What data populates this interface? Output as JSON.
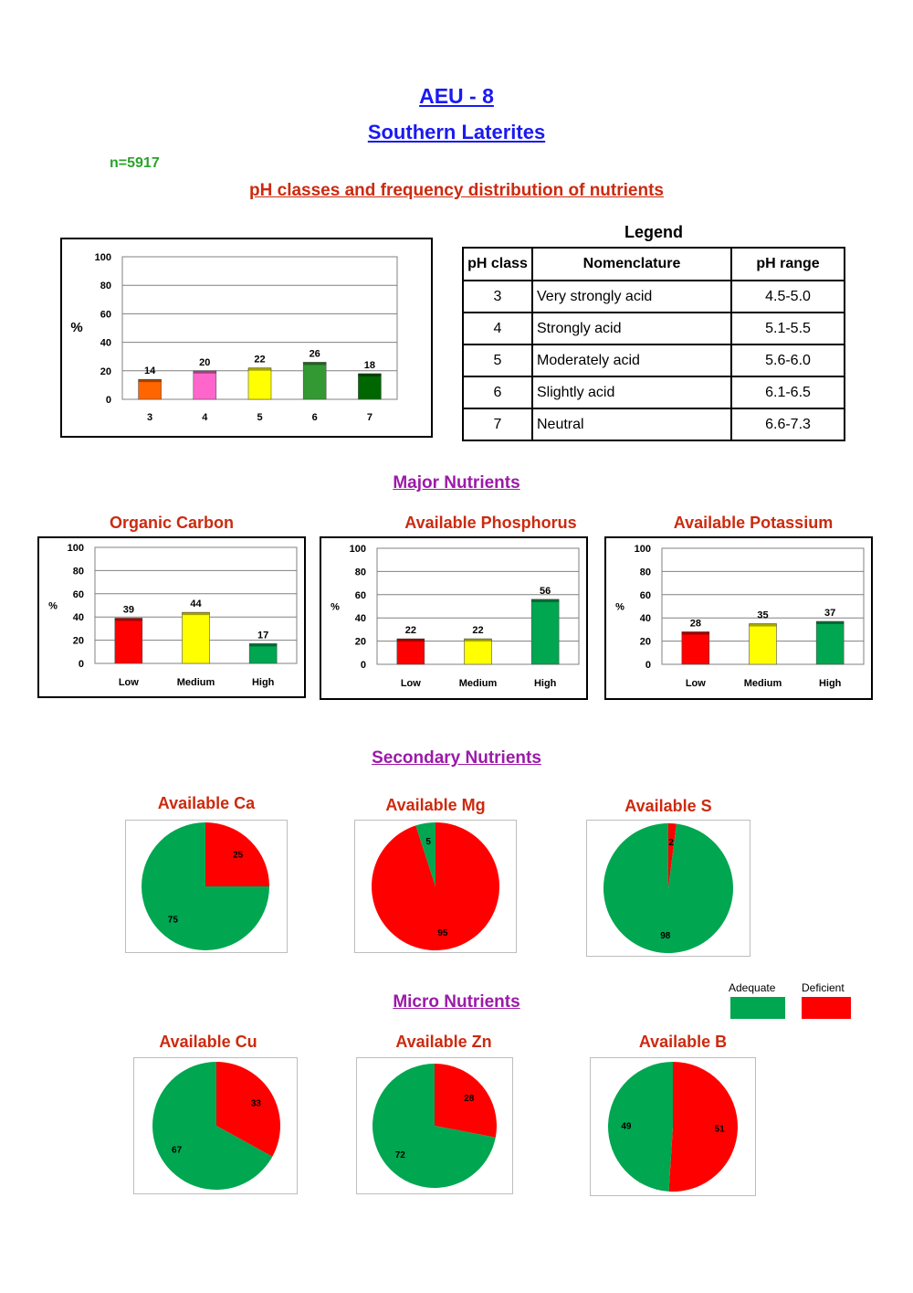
{
  "header": {
    "aeu": "AEU - 8",
    "region": "Southern Laterites",
    "n": "n=5917",
    "section_ph": "pH classes and frequency distribution of nutrients",
    "section_major": "Major Nutrients",
    "section_secondary": "Secondary Nutrients",
    "section_micro": "Micro Nutrients"
  },
  "colors": {
    "title_blue": "#1a1af0",
    "section_red": "#cc2a0f",
    "section_purple": "#9b1aa8",
    "n_green": "#2aa32a",
    "adequate": "#00a650",
    "deficient": "#ff0000",
    "low": "#ff0000",
    "medium": "#ffff00",
    "high": "#00a650"
  },
  "legend_table": {
    "title": "Legend",
    "headers": [
      "pH class",
      "Nomenclature",
      "pH range"
    ],
    "rows": [
      [
        "3",
        "Very strongly acid",
        "4.5-5.0"
      ],
      [
        "4",
        "Strongly acid",
        "5.1-5.5"
      ],
      [
        "5",
        "Moderately acid",
        "5.6-6.0"
      ],
      [
        "6",
        "Slightly acid",
        "6.1-6.5"
      ],
      [
        "7",
        "Neutral",
        "6.6-7.3"
      ]
    ]
  },
  "pie_legend": {
    "adequate": "Adequate",
    "deficient": "Deficient"
  },
  "chart_data": [
    {
      "id": "ph",
      "type": "bar",
      "title": "",
      "ylabel": "%",
      "ylim": [
        0,
        100
      ],
      "yticks": [
        0,
        20,
        40,
        60,
        80,
        100
      ],
      "grid": true,
      "categories": [
        "3",
        "4",
        "5",
        "6",
        "7"
      ],
      "values": [
        14,
        20,
        22,
        26,
        18
      ],
      "colors": [
        "#ff6600",
        "#ff66cc",
        "#ffff00",
        "#339933",
        "#006600"
      ]
    },
    {
      "id": "oc",
      "type": "bar",
      "title": "Organic Carbon",
      "ylabel": "%",
      "ylim": [
        0,
        100
      ],
      "yticks": [
        0,
        20,
        40,
        60,
        80,
        100
      ],
      "grid": true,
      "categories": [
        "Low",
        "Medium",
        "High"
      ],
      "values": [
        39,
        44,
        17
      ],
      "colors": [
        "#ff0000",
        "#ffff00",
        "#00a650"
      ]
    },
    {
      "id": "p",
      "type": "bar",
      "title": "Available Phosphorus",
      "ylabel": "%",
      "ylim": [
        0,
        100
      ],
      "yticks": [
        0,
        20,
        40,
        60,
        80,
        100
      ],
      "grid": true,
      "categories": [
        "Low",
        "Medium",
        "High"
      ],
      "values": [
        22,
        22,
        56
      ],
      "colors": [
        "#ff0000",
        "#ffff00",
        "#00a650"
      ]
    },
    {
      "id": "k",
      "type": "bar",
      "title": "Available Potassium",
      "ylabel": "%",
      "ylim": [
        0,
        100
      ],
      "yticks": [
        0,
        20,
        40,
        60,
        80,
        100
      ],
      "grid": true,
      "categories": [
        "Low",
        "Medium",
        "High"
      ],
      "values": [
        28,
        35,
        37
      ],
      "colors": [
        "#ff0000",
        "#ffff00",
        "#00a650"
      ]
    },
    {
      "id": "ca",
      "type": "pie",
      "title": "Available Ca",
      "labels": [
        "Adequate",
        "Deficient"
      ],
      "values": [
        75,
        25
      ]
    },
    {
      "id": "mg",
      "type": "pie",
      "title": "Available Mg",
      "labels": [
        "Adequate",
        "Deficient"
      ],
      "values": [
        5,
        95
      ]
    },
    {
      "id": "s",
      "type": "pie",
      "title": "Available S",
      "labels": [
        "Adequate",
        "Deficient"
      ],
      "values": [
        98,
        2
      ]
    },
    {
      "id": "cu",
      "type": "pie",
      "title": "Available Cu",
      "labels": [
        "Adequate",
        "Deficient"
      ],
      "values": [
        67,
        33
      ]
    },
    {
      "id": "zn",
      "type": "pie",
      "title": "Available Zn",
      "labels": [
        "Adequate",
        "Deficient"
      ],
      "values": [
        72,
        28
      ]
    },
    {
      "id": "b",
      "type": "pie",
      "title": "Available B",
      "labels": [
        "Adequate",
        "Deficient"
      ],
      "values": [
        49,
        51
      ]
    }
  ]
}
